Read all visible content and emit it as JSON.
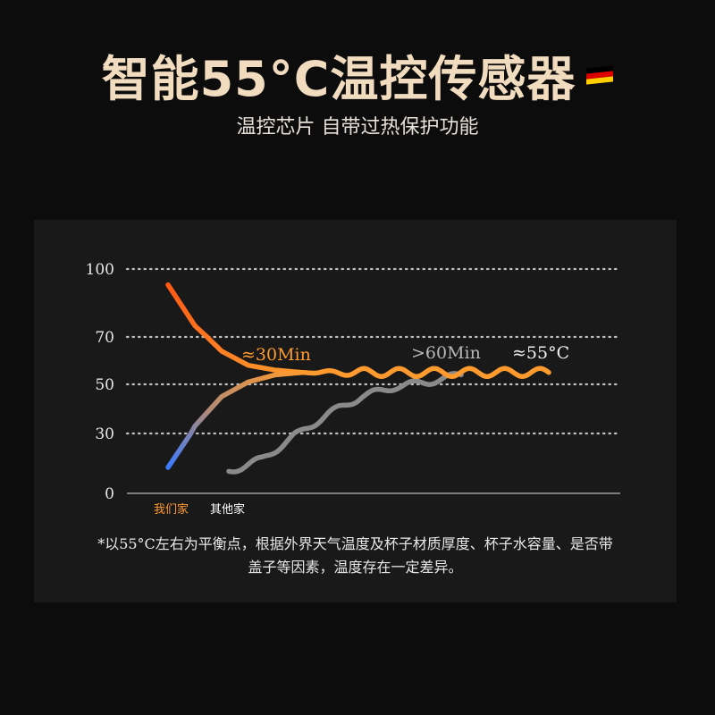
{
  "header": {
    "title": "智能55°C温控传感器",
    "flag_icon": "germany-flag-icon",
    "flag_colors": [
      "#000000",
      "#dd0000",
      "#ffce00"
    ],
    "subtitle": "温控芯片 自带过热保护功能"
  },
  "colors": {
    "title": "#f2dcbf",
    "ours_hot": "#ff6a1a",
    "ours_warm": "#ff9a2e",
    "ours_cold": "#3a7bff",
    "others": "#8a8a8a",
    "others_legend": "#ffffff",
    "ours_legend": "#ff9a2e",
    "grid": "#bfbfbf"
  },
  "chart_data": {
    "type": "line",
    "title": "",
    "xlabel": "",
    "ylabel": "",
    "ylim": [
      0,
      100
    ],
    "y_ticks": [
      100,
      70,
      50,
      30,
      0
    ],
    "grid": true,
    "legend": [
      "我们家",
      "其他家"
    ],
    "annotations": [
      "≈30Min",
      ">60Min",
      "≈55°C"
    ],
    "series": [
      {
        "name": "我们家",
        "style": "cooling from hot",
        "x": [
          0,
          6,
          12,
          18,
          24,
          30
        ],
        "values": [
          93,
          75,
          64,
          58,
          56,
          55
        ]
      },
      {
        "name": "我们家",
        "style": "warming from cold",
        "x": [
          0,
          6,
          12,
          18,
          24,
          30
        ],
        "values": [
          13,
          33,
          45,
          51,
          54,
          55
        ]
      },
      {
        "name": "我们家",
        "style": "holding at 55°C",
        "x": [
          30,
          40,
          50,
          60,
          70,
          80,
          90,
          100
        ],
        "values": [
          55,
          56,
          54,
          56,
          54,
          56,
          54,
          55
        ]
      },
      {
        "name": "其他家",
        "x": [
          0,
          10,
          20,
          30,
          40,
          50,
          60,
          70
        ],
        "values": [
          11,
          17,
          29,
          38,
          45,
          49,
          51,
          54
        ]
      }
    ]
  },
  "footnote": {
    "line1": "*以55°C左右为平衡点，根据外界天气温度及杯子材质厚度、杯子水容量、是否带",
    "line2": "盖子等因素，温度存在一定差异。"
  }
}
